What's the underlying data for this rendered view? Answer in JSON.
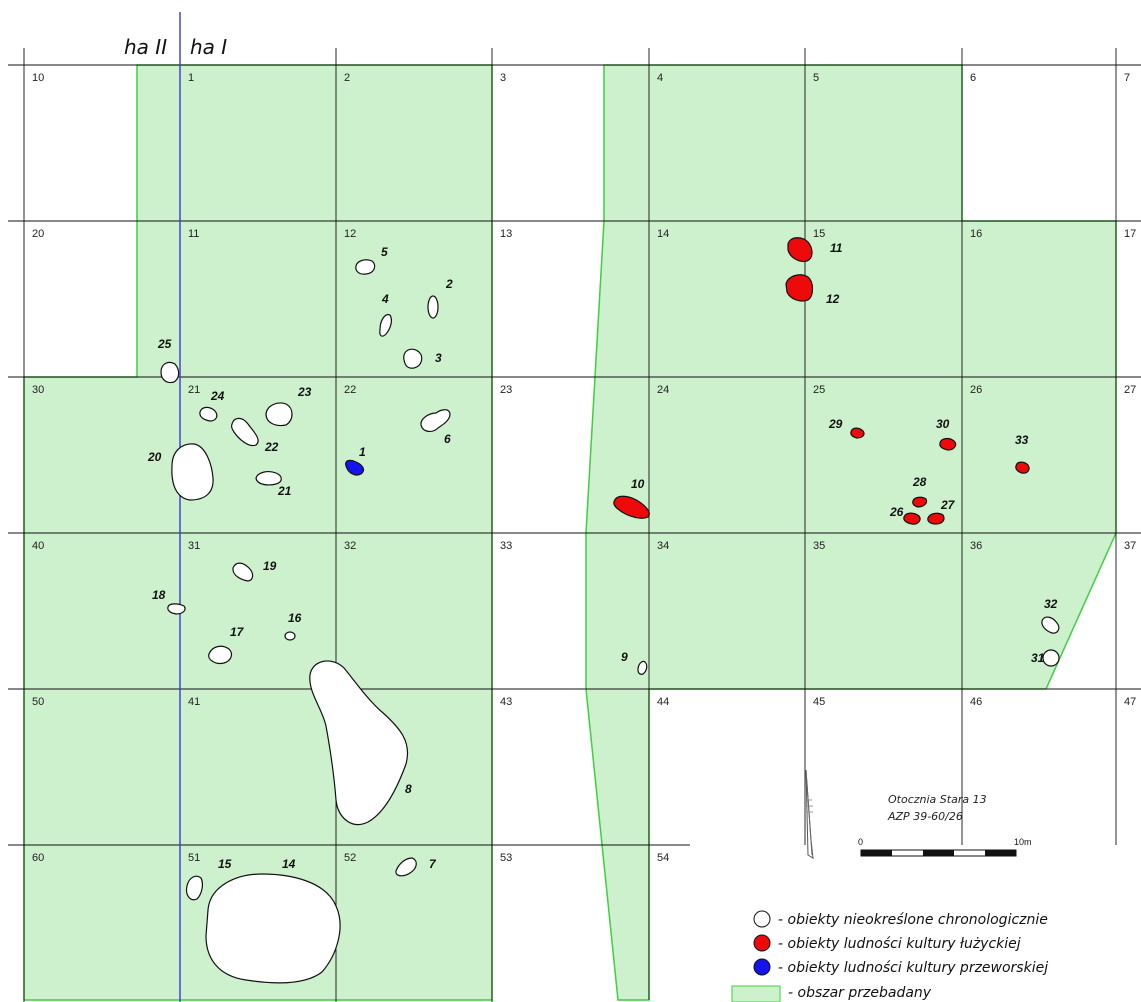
{
  "colors": {
    "surveyed_fill": "#cdf0cd",
    "surveyed_border": "#3fcf3f",
    "undetermined": "#ffffff",
    "lusatian": "#ee0a0a",
    "przeworsk": "#1414ee",
    "boundary_line": "#3a3acf",
    "grid": "#111111"
  },
  "header": {
    "ha_left": "ha II",
    "ha_right": "ha I"
  },
  "squares": [
    {
      "id": "10",
      "row": 0,
      "col": 0
    },
    {
      "id": "1",
      "row": 0,
      "col": 1
    },
    {
      "id": "2",
      "row": 0,
      "col": 2
    },
    {
      "id": "3",
      "row": 0,
      "col": 3
    },
    {
      "id": "4",
      "row": 0,
      "col": 4
    },
    {
      "id": "5",
      "row": 0,
      "col": 5
    },
    {
      "id": "6",
      "row": 0,
      "col": 6
    },
    {
      "id": "7",
      "row": 0,
      "col": 7
    },
    {
      "id": "20",
      "row": 1,
      "col": 0
    },
    {
      "id": "11",
      "row": 1,
      "col": 1
    },
    {
      "id": "12",
      "row": 1,
      "col": 2
    },
    {
      "id": "13",
      "row": 1,
      "col": 3
    },
    {
      "id": "14",
      "row": 1,
      "col": 4
    },
    {
      "id": "15",
      "row": 1,
      "col": 5
    },
    {
      "id": "16",
      "row": 1,
      "col": 6
    },
    {
      "id": "17",
      "row": 1,
      "col": 7
    },
    {
      "id": "30",
      "row": 2,
      "col": 0
    },
    {
      "id": "21",
      "row": 2,
      "col": 1
    },
    {
      "id": "22",
      "row": 2,
      "col": 2
    },
    {
      "id": "23",
      "row": 2,
      "col": 3
    },
    {
      "id": "24",
      "row": 2,
      "col": 4
    },
    {
      "id": "25",
      "row": 2,
      "col": 5
    },
    {
      "id": "26",
      "row": 2,
      "col": 6
    },
    {
      "id": "27",
      "row": 2,
      "col": 7
    },
    {
      "id": "40",
      "row": 3,
      "col": 0
    },
    {
      "id": "31",
      "row": 3,
      "col": 1
    },
    {
      "id": "32",
      "row": 3,
      "col": 2
    },
    {
      "id": "33",
      "row": 3,
      "col": 3
    },
    {
      "id": "34",
      "row": 3,
      "col": 4
    },
    {
      "id": "35",
      "row": 3,
      "col": 5
    },
    {
      "id": "36",
      "row": 3,
      "col": 6
    },
    {
      "id": "37",
      "row": 3,
      "col": 7
    },
    {
      "id": "50",
      "row": 4,
      "col": 0
    },
    {
      "id": "41",
      "row": 4,
      "col": 1
    },
    {
      "id": "42",
      "row": 4,
      "col": 2
    },
    {
      "id": "43",
      "row": 4,
      "col": 3
    },
    {
      "id": "44",
      "row": 4,
      "col": 4
    },
    {
      "id": "45",
      "row": 4,
      "col": 5
    },
    {
      "id": "46",
      "row": 4,
      "col": 6
    },
    {
      "id": "47",
      "row": 4,
      "col": 7
    },
    {
      "id": "60",
      "row": 5,
      "col": 0
    },
    {
      "id": "51",
      "row": 5,
      "col": 1
    },
    {
      "id": "52",
      "row": 5,
      "col": 2
    },
    {
      "id": "53",
      "row": 5,
      "col": 3
    },
    {
      "id": "54",
      "row": 5,
      "col": 4
    }
  ],
  "features": [
    {
      "id": "1",
      "type": "przeworsk"
    },
    {
      "id": "2",
      "type": "undetermined"
    },
    {
      "id": "3",
      "type": "undetermined"
    },
    {
      "id": "4",
      "type": "undetermined"
    },
    {
      "id": "5",
      "type": "undetermined"
    },
    {
      "id": "6",
      "type": "undetermined"
    },
    {
      "id": "7",
      "type": "undetermined"
    },
    {
      "id": "8",
      "type": "undetermined"
    },
    {
      "id": "9",
      "type": "undetermined"
    },
    {
      "id": "10",
      "type": "lusatian"
    },
    {
      "id": "11",
      "type": "lusatian"
    },
    {
      "id": "12",
      "type": "lusatian"
    },
    {
      "id": "14",
      "type": "undetermined"
    },
    {
      "id": "15",
      "type": "undetermined"
    },
    {
      "id": "16",
      "type": "undetermined"
    },
    {
      "id": "17",
      "type": "undetermined"
    },
    {
      "id": "18",
      "type": "undetermined"
    },
    {
      "id": "19",
      "type": "undetermined"
    },
    {
      "id": "20",
      "type": "undetermined"
    },
    {
      "id": "21",
      "type": "undetermined"
    },
    {
      "id": "22",
      "type": "undetermined"
    },
    {
      "id": "23",
      "type": "undetermined"
    },
    {
      "id": "24",
      "type": "undetermined"
    },
    {
      "id": "25",
      "type": "undetermined"
    },
    {
      "id": "26",
      "type": "lusatian"
    },
    {
      "id": "27",
      "type": "lusatian"
    },
    {
      "id": "28",
      "type": "lusatian"
    },
    {
      "id": "29",
      "type": "lusatian"
    },
    {
      "id": "30",
      "type": "lusatian"
    },
    {
      "id": "31",
      "type": "undetermined"
    },
    {
      "id": "32",
      "type": "undetermined"
    },
    {
      "id": "33",
      "type": "lusatian"
    }
  ],
  "site": {
    "name": "Otocznia Stara 13",
    "code": "AZP 39-60/26"
  },
  "scale": {
    "start": "0",
    "end": "10m"
  },
  "legend": [
    {
      "key": "undetermined",
      "text": "- obiekty nieokreślone chronologicznie"
    },
    {
      "key": "lusatian",
      "text": "- obiekty ludności kultury łużyckiej"
    },
    {
      "key": "przeworsk",
      "text": "- obiekty ludności kultury przeworskiej"
    },
    {
      "key": "surveyed",
      "text": "- obszar przebadany"
    }
  ]
}
